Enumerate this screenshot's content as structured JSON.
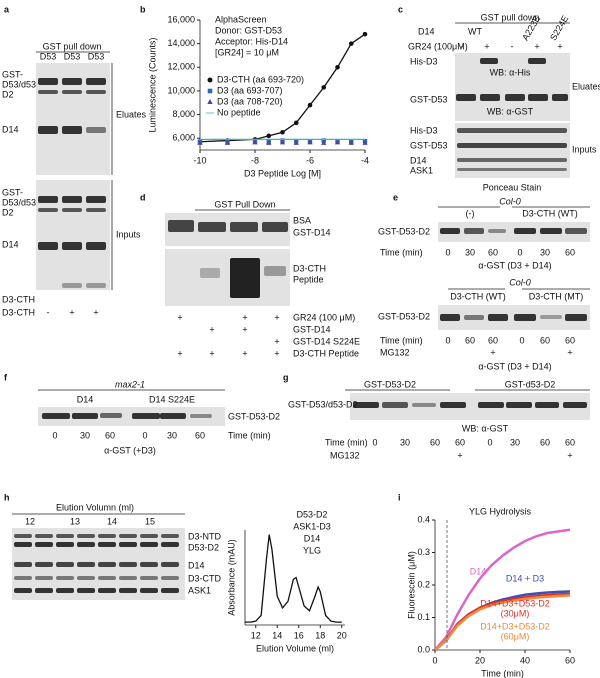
{
  "panel_labels": [
    "a",
    "b",
    "c",
    "d",
    "e",
    "f",
    "g",
    "h",
    "i"
  ],
  "panel_a": {
    "header": "GST pull down",
    "lanes": [
      "D53",
      "D53",
      "D53"
    ],
    "eluate_labels": [
      "GST-",
      "D53/d53",
      "D2",
      "D14"
    ],
    "input_labels": [
      "GST-",
      "D53/d53",
      "D2",
      "D14",
      "D3-CTH"
    ],
    "sections": [
      "Eluates",
      "Inputs"
    ],
    "peptide_row": {
      "label": "D3-CTH",
      "marks": [
        "-",
        "+",
        "+"
      ]
    }
  },
  "panel_c": {
    "header": "GST pull down",
    "d14_label": "D14",
    "d14_variants": [
      "WT",
      "A223E",
      "S224E"
    ],
    "gr24_row": {
      "label": "GR24 (100μM)",
      "marks": [
        "-",
        "+",
        "-",
        "+",
        "+"
      ]
    },
    "eluate_labels": [
      "His-D3",
      "GST-D53"
    ],
    "antibodies": [
      "WB: α-His",
      "WB: α-GST"
    ],
    "input_labels": [
      "His-D3",
      "GST-D53",
      "D14",
      "ASK1"
    ],
    "stain": "Ponceau Stain",
    "sections": [
      "Eluates",
      "Inputs"
    ]
  },
  "panel_d": {
    "header": "GST Pull Down",
    "band_labels": [
      "BSA",
      "GST-D14"
    ],
    "peptide_label": [
      "D3-CTH",
      "Peptide"
    ],
    "rows": [
      {
        "label": "GR24 (100 μM)",
        "marks": [
          "+",
          "+",
          "+"
        ]
      },
      {
        "label": "GST-D14",
        "marks": [
          "+",
          "+"
        ]
      },
      {
        "label": "GST-D14 S224E",
        "marks": [
          "+"
        ]
      },
      {
        "label": "D3-CTH Peptide",
        "marks": [
          "+",
          "+",
          "+",
          "+"
        ]
      }
    ]
  },
  "panel_e": {
    "top": {
      "genotype": "Col-0",
      "groups": [
        "(-)",
        "D3-CTH (WT)"
      ],
      "protein": "GST-D53-D2",
      "time_label": "Time (min)",
      "times": [
        0,
        30,
        60,
        0,
        30,
        60
      ],
      "antibody": "α-GST (D3 + D14)"
    },
    "bottom": {
      "genotype": "Col-0",
      "groups": [
        "D3-CTH (WT)",
        "D3-CTH (MT)"
      ],
      "protein": "GST-D53-D2",
      "time_label": "Time (min)",
      "times": [
        0,
        60,
        60,
        0,
        60,
        60
      ],
      "treatment": {
        "label": "MG132",
        "marks": [
          "+",
          "+"
        ]
      },
      "antibody": "α-GST (D3 + D14)"
    }
  },
  "panel_f": {
    "genotype": "max2-1",
    "groups": [
      "D14",
      "D14 S224E"
    ],
    "protein": "GST-D53-D2",
    "time_label": "Time (min)",
    "times": [
      0,
      30,
      60,
      0,
      30,
      60
    ],
    "antibody": "α-GST (+D3)"
  },
  "panel_g": {
    "groups": [
      "GST-D53-D2",
      "GST-d53-D2"
    ],
    "protein": "GST-D53/d53-D2",
    "antibody": "WB: α-GST",
    "time_label": "Time (min)",
    "times": [
      0,
      30,
      60,
      60,
      0,
      30,
      60,
      60
    ],
    "treatment": {
      "label": "MG132",
      "marks": [
        "+",
        "+"
      ]
    }
  },
  "panel_h": {
    "fraction_label": "Elution Volumn (ml)",
    "fractions": [
      12,
      13,
      14,
      15
    ],
    "band_labels": [
      "D3-NTD",
      "D53-D2",
      "D14",
      "D3-CTD",
      "ASK1"
    ]
  },
  "chart_data": [
    {
      "type": "line",
      "annotations": [
        "AlphaScreen",
        "Donor: GST-D53",
        "Acceptor: His-D14",
        "[GR24] = 10 μM"
      ],
      "y_label": "Luminescence (Counts)",
      "x_label": "D3 Peptide Log [M]",
      "x": [
        -10,
        -9,
        -8,
        -7.5,
        -7,
        -6.5,
        -6,
        -5.5,
        -5,
        -4.5,
        -4
      ],
      "xlim": [
        -10,
        -4
      ],
      "xticks": [
        -10,
        -8,
        -6,
        -4
      ],
      "ylim": [
        5000,
        16000
      ],
      "yticks": [
        {
          "value": 6000,
          "label": "6,000"
        },
        {
          "value": 8000,
          "label": "8,000"
        },
        {
          "value": 10000,
          "label": "10,000"
        },
        {
          "value": 12000,
          "label": "12,000"
        },
        {
          "value": 14000,
          "label": "14,000"
        },
        {
          "value": 16000,
          "label": "16,000"
        }
      ],
      "legend": true,
      "series": [
        {
          "name": "D3-CTH (aa 693-720)",
          "color": "#111111",
          "marker": "circle",
          "line": true,
          "values": [
            5700,
            5800,
            5900,
            6200,
            6500,
            7300,
            8800,
            10300,
            12000,
            14000,
            14800
          ]
        },
        {
          "name": "D3 (aa 693-707)",
          "color": "#2a6ab0",
          "marker": "square",
          "line": false,
          "values": [
            5700,
            5700,
            5750,
            5700,
            5800,
            5750,
            5700,
            5800,
            5750,
            5700,
            5750
          ]
        },
        {
          "name": "D3 (aa 708-720)",
          "color": "#5a3f9a",
          "marker": "triangle",
          "line": false,
          "values": [
            5600,
            5600,
            5650,
            5600,
            5650,
            5600,
            5650,
            5600,
            5650,
            5600,
            5600
          ]
        },
        {
          "name": "No peptide",
          "color": "#35b8b8",
          "marker": "none",
          "line": true,
          "values": [
            5900,
            5900,
            5900,
            5900,
            5900,
            5900,
            5900,
            5900,
            5900,
            5900,
            5900
          ]
        }
      ]
    },
    {
      "type": "line",
      "annotations": [
        "D53-D2",
        "ASK1-D3",
        "D14",
        "YLG"
      ],
      "y_label": "Absorbance (mAU)",
      "x_label": "Elution Volume (ml)",
      "x": [
        11,
        11.5,
        12,
        12.5,
        13,
        13.25,
        13.5,
        14,
        14.5,
        15,
        15.5,
        15.75,
        16,
        16.5,
        17,
        17.5,
        17.8,
        18,
        18.5,
        19,
        19.5,
        20
      ],
      "xlim": [
        11,
        20.3
      ],
      "xticks": [
        12,
        14,
        16,
        18,
        20
      ],
      "ylim": [
        0,
        100
      ],
      "color": "#111111",
      "values": [
        3,
        3,
        4,
        10,
        70,
        95,
        80,
        30,
        18,
        25,
        48,
        50,
        40,
        20,
        15,
        30,
        40,
        35,
        10,
        4,
        3,
        3
      ]
    },
    {
      "type": "line",
      "title": "YLG Hydrolysis",
      "y_label": "Fluorescein (μM)",
      "x_label": "Time (min)",
      "x": [
        0,
        5,
        10,
        15,
        20,
        25,
        30,
        35,
        40,
        45,
        50,
        55,
        60
      ],
      "xlim": [
        0,
        60
      ],
      "xticks": [
        0,
        20,
        40,
        60
      ],
      "ylim": [
        0,
        0.4
      ],
      "yticks": [
        {
          "value": 0,
          "label": "0.0"
        },
        0.1,
        0.2,
        0.3,
        0.4
      ],
      "series": [
        {
          "name": "D14",
          "color": "#d966c8",
          "values": [
            0,
            0.04,
            0.11,
            0.17,
            0.22,
            0.26,
            0.29,
            0.315,
            0.335,
            0.35,
            0.36,
            0.365,
            0.37
          ]
        },
        {
          "name": "D14 + D3",
          "color": "#3a4fb5",
          "values": [
            0,
            0.03,
            0.08,
            0.11,
            0.13,
            0.145,
            0.155,
            0.163,
            0.17,
            0.174,
            0.177,
            0.179,
            0.18
          ]
        },
        {
          "name": "D14+D3+D53-D2",
          "concentration": "(30μM)",
          "color": "#e0302a",
          "values": [
            0,
            0.03,
            0.08,
            0.11,
            0.13,
            0.142,
            0.15,
            0.157,
            0.162,
            0.166,
            0.169,
            0.171,
            0.172
          ]
        },
        {
          "name": "D14+D3+D53-D2",
          "concentration": "(60μM)",
          "color": "#f08a3c",
          "values": [
            0,
            0.03,
            0.075,
            0.105,
            0.125,
            0.138,
            0.146,
            0.152,
            0.157,
            0.161,
            0.164,
            0.166,
            0.168
          ]
        }
      ]
    }
  ]
}
